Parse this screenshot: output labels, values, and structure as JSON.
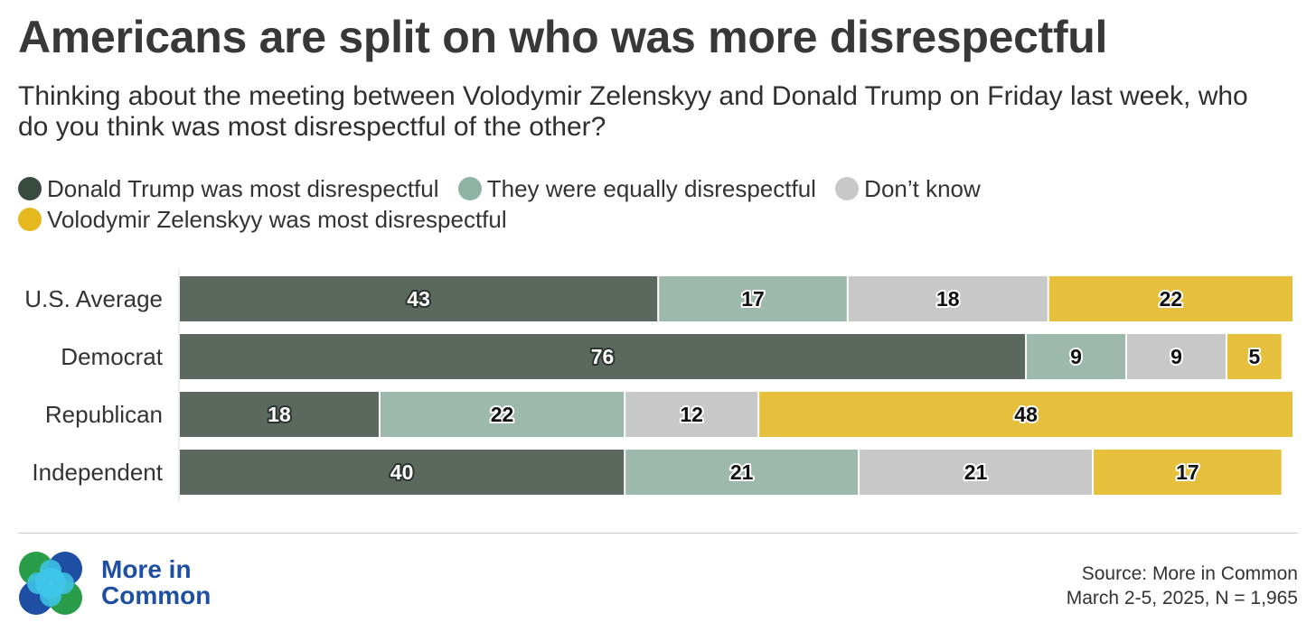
{
  "title": "Americans are split on who was more disrespectful",
  "subtitle": "Thinking about the meeting between Volodymir Zelenskyy and Donald Trump on Friday last week, who do you think was most disrespectful of the other?",
  "colors": {
    "trump": "#5a685d",
    "equal": "#9db9ab",
    "dontknow": "#c8c8c8",
    "zelenskyy": "#e6c03c"
  },
  "legend": [
    {
      "label": "Donald Trump was most disrespectful",
      "color": "#394a3f"
    },
    {
      "label": "They were equally disrespectful",
      "color": "#8fb3a2"
    },
    {
      "label": "Don’t know",
      "color": "#c8c8c8"
    },
    {
      "label": "Volodymir Zelenskyy was most disrespectful",
      "color": "#e6b820"
    }
  ],
  "chart_data": {
    "type": "bar",
    "orientation": "horizontal-stacked-100",
    "categories": [
      "U.S. Average",
      "Democrat",
      "Republican",
      "Independent"
    ],
    "series": [
      {
        "name": "Donald Trump was most disrespectful",
        "values": [
          43,
          76,
          18,
          40
        ]
      },
      {
        "name": "They were equally disrespectful",
        "values": [
          17,
          9,
          22,
          21
        ]
      },
      {
        "name": "Don’t know",
        "values": [
          18,
          9,
          12,
          21
        ]
      },
      {
        "name": "Volodymir Zelenskyy was most disrespectful",
        "values": [
          22,
          5,
          48,
          17
        ]
      }
    ],
    "xlim": [
      0,
      100
    ],
    "legend_position": "top",
    "grid": false
  },
  "logo": {
    "line1": "More in",
    "line2": "Common"
  },
  "source": {
    "line1": "Source: More in Common",
    "line2": "March 2-5, 2025, N = 1,965"
  }
}
